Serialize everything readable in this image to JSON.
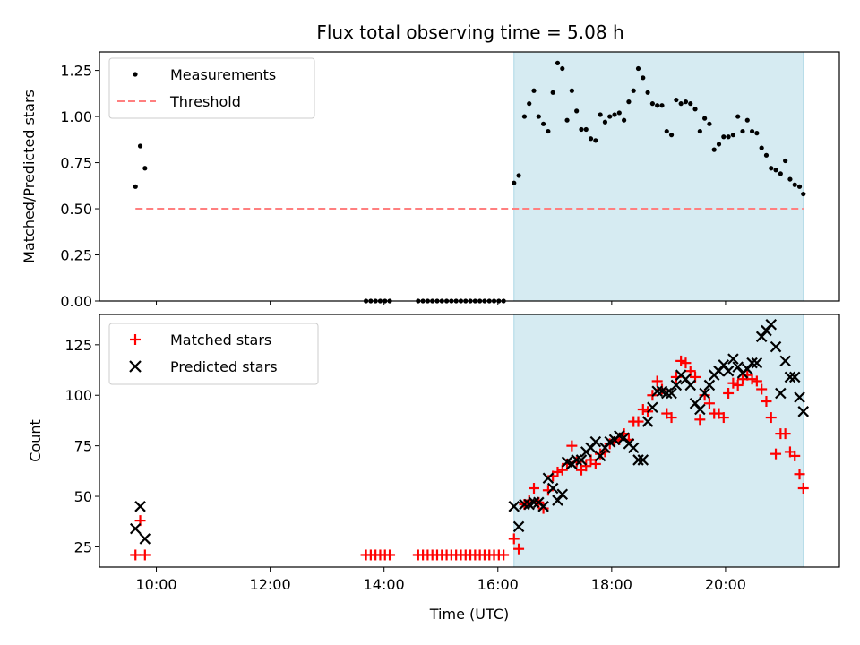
{
  "chart_data": [
    {
      "type": "scatter",
      "title": "Flux total observing time = 5.08 h",
      "xlabel": "",
      "ylabel": "Matched/Predicted stars",
      "xlim": [
        "09:00",
        "22:00"
      ],
      "ylim": [
        0,
        1.35
      ],
      "yticks": [
        0.0,
        0.25,
        0.5,
        0.75,
        1.0,
        1.25
      ],
      "ytick_labels": [
        "0.00",
        "0.25",
        "0.50",
        "0.75",
        "1.00",
        "1.25"
      ],
      "xticks": [
        "10:00",
        "12:00",
        "14:00",
        "16:00",
        "18:00",
        "20:00"
      ],
      "shaded_interval": [
        "16:17",
        "21:22"
      ],
      "legend": {
        "position": "top-left",
        "entries": [
          "Measurements",
          "Threshold"
        ]
      },
      "threshold": {
        "name": "Threshold",
        "y": 0.5,
        "x_range": [
          "09:38",
          "21:22"
        ],
        "color": "#ff7f7f"
      },
      "series": [
        {
          "name": "Measurements",
          "color": "#000000",
          "points": [
            [
              "09:38",
              0.62
            ],
            [
              "09:43",
              0.84
            ],
            [
              "09:48",
              0.72
            ],
            [
              "13:41",
              0.0
            ],
            [
              "13:46",
              0.0
            ],
            [
              "13:51",
              0.0
            ],
            [
              "13:56",
              0.0
            ],
            [
              "14:01",
              0.0
            ],
            [
              "14:06",
              0.0
            ],
            [
              "14:36",
              0.0
            ],
            [
              "14:41",
              0.0
            ],
            [
              "14:46",
              0.0
            ],
            [
              "14:51",
              0.0
            ],
            [
              "14:56",
              0.0
            ],
            [
              "15:01",
              0.0
            ],
            [
              "15:06",
              0.0
            ],
            [
              "15:11",
              0.0
            ],
            [
              "15:16",
              0.0
            ],
            [
              "15:21",
              0.0
            ],
            [
              "15:26",
              0.0
            ],
            [
              "15:31",
              0.0
            ],
            [
              "15:36",
              0.0
            ],
            [
              "15:41",
              0.0
            ],
            [
              "15:46",
              0.0
            ],
            [
              "15:51",
              0.0
            ],
            [
              "15:56",
              0.0
            ],
            [
              "16:01",
              0.0
            ],
            [
              "16:06",
              0.0
            ],
            [
              "16:17",
              0.64
            ],
            [
              "16:22",
              0.68
            ],
            [
              "16:28",
              1.0
            ],
            [
              "16:33",
              1.07
            ],
            [
              "16:38",
              1.14
            ],
            [
              "16:43",
              1.0
            ],
            [
              "16:48",
              0.96
            ],
            [
              "16:53",
              0.92
            ],
            [
              "16:58",
              1.13
            ],
            [
              "17:03",
              1.29
            ],
            [
              "17:08",
              1.26
            ],
            [
              "17:13",
              0.98
            ],
            [
              "17:18",
              1.14
            ],
            [
              "17:23",
              1.03
            ],
            [
              "17:28",
              0.93
            ],
            [
              "17:33",
              0.93
            ],
            [
              "17:38",
              0.88
            ],
            [
              "17:43",
              0.87
            ],
            [
              "17:48",
              1.01
            ],
            [
              "17:53",
              0.97
            ],
            [
              "17:58",
              1.0
            ],
            [
              "18:03",
              1.01
            ],
            [
              "18:08",
              1.02
            ],
            [
              "18:13",
              0.98
            ],
            [
              "18:18",
              1.08
            ],
            [
              "18:23",
              1.14
            ],
            [
              "18:28",
              1.26
            ],
            [
              "18:33",
              1.21
            ],
            [
              "18:38",
              1.13
            ],
            [
              "18:43",
              1.07
            ],
            [
              "18:48",
              1.06
            ],
            [
              "18:53",
              1.06
            ],
            [
              "18:58",
              0.92
            ],
            [
              "19:03",
              0.9
            ],
            [
              "19:08",
              1.09
            ],
            [
              "19:13",
              1.07
            ],
            [
              "19:18",
              1.08
            ],
            [
              "19:23",
              1.07
            ],
            [
              "19:28",
              1.04
            ],
            [
              "19:33",
              0.92
            ],
            [
              "19:38",
              0.99
            ],
            [
              "19:43",
              0.96
            ],
            [
              "19:48",
              0.82
            ],
            [
              "19:53",
              0.85
            ],
            [
              "19:58",
              0.89
            ],
            [
              "20:03",
              0.89
            ],
            [
              "20:08",
              0.9
            ],
            [
              "20:13",
              1.0
            ],
            [
              "20:18",
              0.92
            ],
            [
              "20:23",
              0.98
            ],
            [
              "20:28",
              0.92
            ],
            [
              "20:33",
              0.91
            ],
            [
              "20:38",
              0.83
            ],
            [
              "20:43",
              0.79
            ],
            [
              "20:48",
              0.72
            ],
            [
              "20:53",
              0.71
            ],
            [
              "20:58",
              0.69
            ],
            [
              "21:03",
              0.76
            ],
            [
              "21:08",
              0.66
            ],
            [
              "21:13",
              0.63
            ],
            [
              "21:18",
              0.62
            ],
            [
              "21:22",
              0.58
            ]
          ]
        }
      ]
    },
    {
      "type": "scatter",
      "xlabel": "Time (UTC)",
      "ylabel": "Count",
      "xlim": [
        "09:00",
        "22:00"
      ],
      "ylim": [
        15,
        140
      ],
      "yticks": [
        25,
        50,
        75,
        100,
        125
      ],
      "ytick_labels": [
        "25",
        "50",
        "75",
        "100",
        "125"
      ],
      "xticks": [
        "10:00",
        "12:00",
        "14:00",
        "16:00",
        "18:00",
        "20:00"
      ],
      "xtick_labels": [
        "10:00",
        "12:00",
        "14:00",
        "16:00",
        "18:00",
        "20:00"
      ],
      "shaded_interval": [
        "16:17",
        "21:22"
      ],
      "legend": {
        "position": "top-left",
        "entries": [
          "Matched stars",
          "Predicted stars"
        ]
      },
      "series": [
        {
          "name": "Matched stars",
          "marker": "+",
          "color": "#ff0000",
          "points": [
            [
              "09:38",
              21
            ],
            [
              "09:43",
              38
            ],
            [
              "09:48",
              21
            ],
            [
              "13:41",
              21
            ],
            [
              "13:46",
              21
            ],
            [
              "13:51",
              21
            ],
            [
              "13:56",
              21
            ],
            [
              "14:01",
              21
            ],
            [
              "14:06",
              21
            ],
            [
              "14:36",
              21
            ],
            [
              "14:41",
              21
            ],
            [
              "14:46",
              21
            ],
            [
              "14:51",
              21
            ],
            [
              "14:56",
              21
            ],
            [
              "15:01",
              21
            ],
            [
              "15:06",
              21
            ],
            [
              "15:11",
              21
            ],
            [
              "15:16",
              21
            ],
            [
              "15:21",
              21
            ],
            [
              "15:26",
              21
            ],
            [
              "15:31",
              21
            ],
            [
              "15:36",
              21
            ],
            [
              "15:41",
              21
            ],
            [
              "15:46",
              21
            ],
            [
              "15:51",
              21
            ],
            [
              "15:56",
              21
            ],
            [
              "16:01",
              21
            ],
            [
              "16:06",
              21
            ],
            [
              "16:17",
              29
            ],
            [
              "16:22",
              24
            ],
            [
              "16:28",
              46
            ],
            [
              "16:33",
              48
            ],
            [
              "16:38",
              54
            ],
            [
              "16:43",
              47
            ],
            [
              "16:48",
              44
            ],
            [
              "16:53",
              53
            ],
            [
              "16:58",
              60
            ],
            [
              "17:03",
              62
            ],
            [
              "17:08",
              63
            ],
            [
              "17:13",
              66
            ],
            [
              "17:18",
              75
            ],
            [
              "17:23",
              67
            ],
            [
              "17:28",
              63
            ],
            [
              "17:33",
              65
            ],
            [
              "17:38",
              68
            ],
            [
              "17:43",
              66
            ],
            [
              "17:48",
              71
            ],
            [
              "17:53",
              72
            ],
            [
              "17:58",
              76
            ],
            [
              "18:03",
              77
            ],
            [
              "18:08",
              78
            ],
            [
              "18:13",
              81
            ],
            [
              "18:18",
              78
            ],
            [
              "18:23",
              87
            ],
            [
              "18:28",
              87
            ],
            [
              "18:33",
              93
            ],
            [
              "18:38",
              92
            ],
            [
              "18:43",
              100
            ],
            [
              "18:48",
              107
            ],
            [
              "18:53",
              103
            ],
            [
              "18:58",
              91
            ],
            [
              "19:03",
              89
            ],
            [
              "19:08",
              109
            ],
            [
              "19:13",
              117
            ],
            [
              "19:18",
              116
            ],
            [
              "19:23",
              112
            ],
            [
              "19:28",
              109
            ],
            [
              "19:33",
              88
            ],
            [
              "19:38",
              100
            ],
            [
              "19:43",
              96
            ],
            [
              "19:48",
              91
            ],
            [
              "19:53",
              91
            ],
            [
              "19:58",
              89
            ],
            [
              "20:03",
              101
            ],
            [
              "20:08",
              106
            ],
            [
              "20:13",
              105
            ],
            [
              "20:18",
              108
            ],
            [
              "20:23",
              110
            ],
            [
              "20:28",
              108
            ],
            [
              "20:33",
              107
            ],
            [
              "20:38",
              103
            ],
            [
              "20:43",
              97
            ],
            [
              "20:48",
              89
            ],
            [
              "20:53",
              71
            ],
            [
              "20:58",
              81
            ],
            [
              "21:03",
              81
            ],
            [
              "21:08",
              72
            ],
            [
              "21:13",
              70
            ],
            [
              "21:18",
              61
            ],
            [
              "21:22",
              54
            ]
          ]
        },
        {
          "name": "Predicted stars",
          "marker": "x",
          "color": "#000000",
          "points": [
            [
              "09:38",
              34
            ],
            [
              "09:43",
              45
            ],
            [
              "09:48",
              29
            ],
            [
              "16:17",
              45
            ],
            [
              "16:22",
              35
            ],
            [
              "16:28",
              46
            ],
            [
              "16:33",
              46
            ],
            [
              "16:38",
              47
            ],
            [
              "16:43",
              47
            ],
            [
              "16:48",
              45
            ],
            [
              "16:53",
              59
            ],
            [
              "16:58",
              54
            ],
            [
              "17:03",
              48
            ],
            [
              "17:08",
              51
            ],
            [
              "17:13",
              67
            ],
            [
              "17:18",
              66
            ],
            [
              "17:23",
              68
            ],
            [
              "17:28",
              68
            ],
            [
              "17:33",
              72
            ],
            [
              "17:38",
              74
            ],
            [
              "17:43",
              77
            ],
            [
              "17:48",
              70
            ],
            [
              "17:53",
              74
            ],
            [
              "17:58",
              77
            ],
            [
              "18:03",
              78
            ],
            [
              "18:08",
              80
            ],
            [
              "18:13",
              79
            ],
            [
              "18:18",
              76
            ],
            [
              "18:23",
              74
            ],
            [
              "18:28",
              68
            ],
            [
              "18:33",
              68
            ],
            [
              "18:38",
              87
            ],
            [
              "18:43",
              94
            ],
            [
              "18:48",
              102
            ],
            [
              "18:53",
              102
            ],
            [
              "18:58",
              101
            ],
            [
              "19:03",
              101
            ],
            [
              "19:08",
              105
            ],
            [
              "19:13",
              110
            ],
            [
              "19:18",
              108
            ],
            [
              "19:23",
              105
            ],
            [
              "19:28",
              96
            ],
            [
              "19:33",
              93
            ],
            [
              "19:38",
              101
            ],
            [
              "19:43",
              105
            ],
            [
              "19:48",
              110
            ],
            [
              "19:53",
              112
            ],
            [
              "19:58",
              115
            ],
            [
              "20:03",
              112
            ],
            [
              "20:08",
              118
            ],
            [
              "20:13",
              114
            ],
            [
              "20:18",
              111
            ],
            [
              "20:23",
              113
            ],
            [
              "20:28",
              116
            ],
            [
              "20:33",
              116
            ],
            [
              "20:38",
              129
            ],
            [
              "20:43",
              132
            ],
            [
              "20:48",
              135
            ],
            [
              "20:53",
              124
            ],
            [
              "20:58",
              101
            ],
            [
              "21:03",
              117
            ],
            [
              "21:08",
              109
            ],
            [
              "21:13",
              109
            ],
            [
              "21:18",
              99
            ],
            [
              "21:22",
              92
            ]
          ]
        }
      ]
    }
  ]
}
